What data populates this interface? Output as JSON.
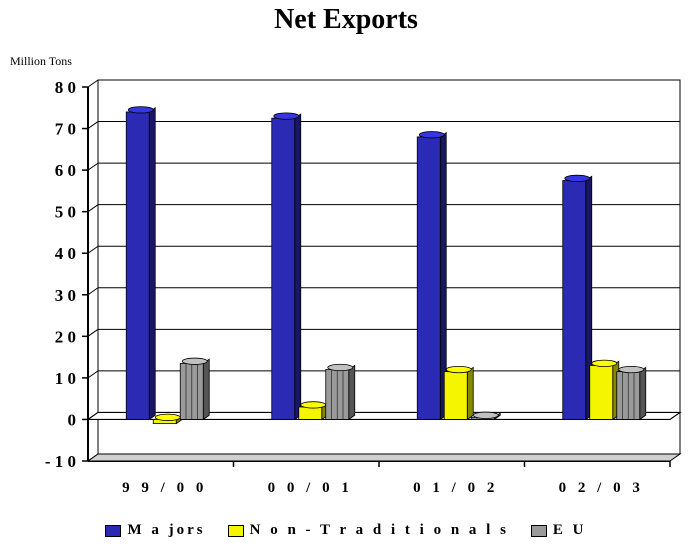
{
  "chart_data": {
    "type": "bar",
    "title": "Net Exports",
    "ylabel": "Million Tons",
    "ylim": [
      -10,
      80
    ],
    "yticks": [
      "- 1 0",
      "0",
      "1 0",
      "2 0",
      "3 0",
      "4 0",
      "5 0",
      "6 0",
      "7 0",
      "8 0"
    ],
    "categories": [
      "9 9 / 0 0",
      "0 0 / 0 1",
      "0 1 / 0 2",
      "0 2 / 0 3"
    ],
    "series": [
      {
        "name": "M a jors",
        "color": "#2a2ab4",
        "values": [
          74,
          72.5,
          68,
          57.5
        ]
      },
      {
        "name": "N o n - T r a d i t i o n a l s",
        "color": "#f5f500",
        "values": [
          -1,
          3,
          11.5,
          13
        ]
      },
      {
        "name": "E U",
        "color": "#9a9a9a",
        "values": [
          13.5,
          12,
          0.5,
          11.5
        ]
      }
    ],
    "grid": true,
    "legend_position": "bottom"
  }
}
